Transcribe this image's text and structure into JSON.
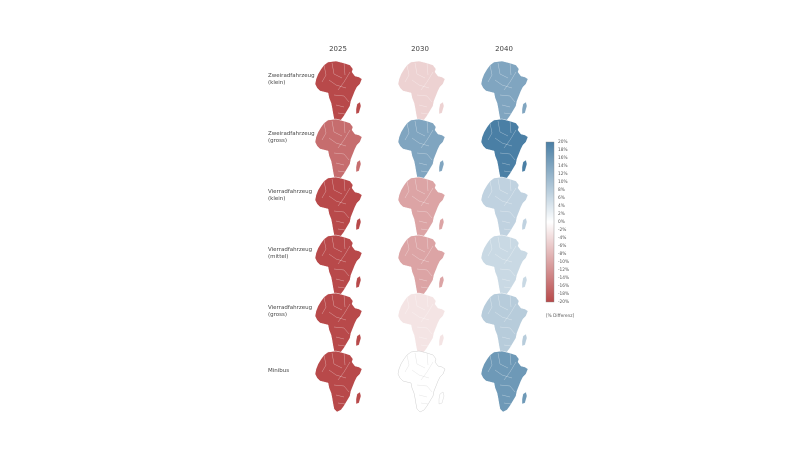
{
  "columns": [
    "2025",
    "2030",
    "2040"
  ],
  "rows": [
    {
      "line1": "Zweiradfahrzeug",
      "line2": "(klein)"
    },
    {
      "line1": "Zweiradfahrzeug",
      "line2": "(gross)"
    },
    {
      "line1": "Vierradfahrzeug",
      "line2": "(klein)"
    },
    {
      "line1": "Vierradfahrzeug",
      "line2": "(mittel)"
    },
    {
      "line1": "Vierradfahrzeug",
      "line2": "(gross)"
    },
    {
      "line1": "Minibus",
      "line2": ""
    }
  ],
  "legend": {
    "unit": "[% Differenz]",
    "ticks": [
      "20%",
      "18%",
      "16%",
      "14%",
      "12%",
      "10%",
      "8%",
      "6%",
      "4%",
      "2%",
      "0%",
      "-2%",
      "-4%",
      "-6%",
      "-8%",
      "-10%",
      "-12%",
      "-14%",
      "-16%",
      "-18%",
      "-20%"
    ],
    "max": 20,
    "min": -20
  },
  "colors": {
    "negative": "#b8494a",
    "neutral": "#ffffff",
    "positive": "#4a7fa5",
    "border": "#ffffff"
  },
  "maps_percent_difference": [
    [
      -20,
      -5,
      14
    ],
    [
      -16,
      14,
      20
    ],
    [
      -20,
      -10,
      7
    ],
    [
      -20,
      -10,
      6
    ],
    [
      -20,
      -3,
      8
    ],
    [
      -20,
      0,
      16
    ]
  ]
}
